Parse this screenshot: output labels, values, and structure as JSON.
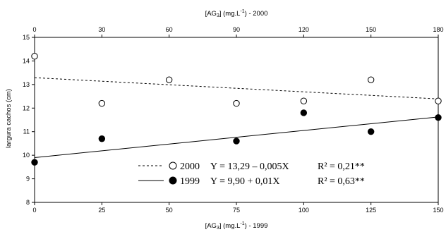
{
  "chart_data": {
    "type": "scatter",
    "title": "",
    "xlabel_bottom": "[AG3] (mg.L-1) - 1999",
    "xlabel_top": "[AG3] (mg.L-1) - 2000",
    "ylabel": "largura cachos (cm)",
    "xlim_bottom": [
      0,
      150
    ],
    "xticks_bottom": [
      "0",
      "25",
      "50",
      "75",
      "100",
      "125",
      "150"
    ],
    "xlim_top": [
      0,
      180
    ],
    "xticks_top": [
      "0",
      "30",
      "60",
      "90",
      "120",
      "150",
      "180"
    ],
    "ylim": [
      8,
      15
    ],
    "yticks": [
      "8",
      "9",
      "10",
      "11",
      "12",
      "13",
      "14",
      "15"
    ],
    "grid": false,
    "legend_position": "bottom-right",
    "series": [
      {
        "name": "2000",
        "axis": "top",
        "marker": "open-circle",
        "line_style": "dashed",
        "x": [
          0,
          30,
          60,
          90,
          120,
          150,
          180
        ],
        "y": [
          14.2,
          12.2,
          13.2,
          12.2,
          12.3,
          13.2,
          12.3
        ],
        "equation": "Y = 13,29 – 0,005X",
        "r2_label": "R² = 0,21**",
        "fit": {
          "intercept": 13.29,
          "slope": -0.005
        }
      },
      {
        "name": "1999",
        "axis": "bottom",
        "marker": "filled-circle",
        "line_style": "solid",
        "x": [
          0,
          25,
          75,
          100,
          125,
          150
        ],
        "y": [
          9.7,
          10.7,
          10.6,
          11.8,
          11.0,
          11.6
        ],
        "equation": "Y = 9,90 + 0,01X",
        "r2_label": "R² = 0,63**",
        "fit": {
          "intercept": 9.9,
          "slope": 0.0115
        }
      }
    ]
  }
}
